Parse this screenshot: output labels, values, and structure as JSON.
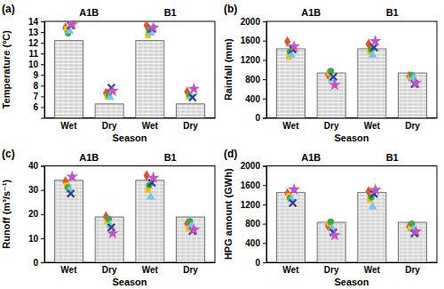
{
  "chart_data": [
    {
      "type": "bar",
      "title": "(a)",
      "x_label": "Season",
      "y_label": "Temperature (ºC)",
      "groups": [
        "A1B",
        "B1"
      ],
      "categories": [
        "Wet",
        "Dry",
        "Wet",
        "Dry"
      ],
      "values": [
        12.2,
        6.3,
        12.2,
        6.3
      ],
      "color": "#d4d4d4",
      "ylim": [
        5,
        14
      ],
      "yticks": [
        6,
        7,
        8,
        9,
        10,
        11,
        12,
        13,
        14
      ],
      "series": [
        {
          "type": "scatter",
          "color": "#e8502a",
          "marker": "diamond",
          "values": [
            13.4,
            7.3,
            13.6,
            7.4
          ]
        },
        {
          "type": "scatter",
          "color": "#f2c200",
          "marker": "square",
          "values": [
            13.3,
            7.0,
            12.7,
            7.0
          ]
        },
        {
          "type": "scatter",
          "color": "#3aa845",
          "marker": "circle",
          "values": [
            12.9,
            7.1,
            13.1,
            7.1
          ]
        },
        {
          "type": "scatter",
          "color": "#74c6e8",
          "marker": "triangle",
          "values": [
            13.1,
            6.9,
            12.9,
            7.0
          ]
        },
        {
          "type": "scatter",
          "color": "#2c3e8c",
          "marker": "x",
          "values": [
            13.6,
            7.8,
            13.3,
            6.9
          ]
        },
        {
          "type": "scatter",
          "color": "#c94fc9",
          "marker": "star",
          "values": [
            13.7,
            7.5,
            13.4,
            7.7
          ]
        }
      ]
    },
    {
      "type": "bar",
      "title": "(b)",
      "x_label": "Season",
      "y_label": "Rainfall (mm)",
      "groups": [
        "A1B",
        "B1"
      ],
      "categories": [
        "Wet",
        "Dry",
        "Wet",
        "Dry"
      ],
      "values": [
        1430,
        930,
        1430,
        930
      ],
      "color": "#d4d4d4",
      "ylim": [
        0,
        2000
      ],
      "yticks": [
        0,
        400,
        800,
        1200,
        1600,
        2000
      ],
      "series": [
        {
          "type": "scatter",
          "color": "#e8502a",
          "marker": "diamond",
          "values": [
            1580,
            900,
            1530,
            860
          ]
        },
        {
          "type": "scatter",
          "color": "#f2c200",
          "marker": "square",
          "values": [
            1260,
            930,
            1370,
            850
          ]
        },
        {
          "type": "scatter",
          "color": "#3aa845",
          "marker": "circle",
          "values": [
            1370,
            970,
            1420,
            880
          ]
        },
        {
          "type": "scatter",
          "color": "#74c6e8",
          "marker": "triangle",
          "values": [
            1300,
            800,
            1300,
            820
          ]
        },
        {
          "type": "scatter",
          "color": "#2c3e8c",
          "marker": "x",
          "values": [
            1420,
            850,
            1460,
            700
          ]
        },
        {
          "type": "scatter",
          "color": "#c94fc9",
          "marker": "star",
          "values": [
            1480,
            680,
            1590,
            720
          ]
        }
      ]
    },
    {
      "type": "bar",
      "title": "(c)",
      "x_label": "Season",
      "y_label": "Runoff (m³/s⁻¹)",
      "groups": [
        "A1B",
        "B1"
      ],
      "categories": [
        "Wet",
        "Dry",
        "Wet",
        "Dry"
      ],
      "values": [
        34,
        18.8,
        34,
        18.8
      ],
      "color": "#d4d4d4",
      "ylim": [
        0,
        40
      ],
      "yticks": [
        0,
        10,
        20,
        30,
        40
      ],
      "series": [
        {
          "type": "scatter",
          "color": "#e8502a",
          "marker": "diamond",
          "values": [
            33.5,
            19,
            36,
            16
          ]
        },
        {
          "type": "scatter",
          "color": "#f2c200",
          "marker": "square",
          "values": [
            32,
            17,
            30,
            14
          ]
        },
        {
          "type": "scatter",
          "color": "#3aa845",
          "marker": "circle",
          "values": [
            31,
            18,
            32,
            17
          ]
        },
        {
          "type": "scatter",
          "color": "#74c6e8",
          "marker": "triangle",
          "values": [
            30,
            15.5,
            27,
            15
          ]
        },
        {
          "type": "scatter",
          "color": "#2c3e8c",
          "marker": "x",
          "values": [
            28.5,
            14.5,
            33,
            13
          ]
        },
        {
          "type": "scatter",
          "color": "#c94fc9",
          "marker": "star",
          "values": [
            35.5,
            12,
            35,
            13.5
          ]
        }
      ]
    },
    {
      "type": "bar",
      "title": "(d)",
      "x_label": "Season",
      "y_label": "HPG amount (GWh)",
      "groups": [
        "A1B",
        "B1"
      ],
      "categories": [
        "Wet",
        "Dry",
        "Wet",
        "Dry"
      ],
      "values": [
        1450,
        830,
        1450,
        830
      ],
      "color": "#d4d4d4",
      "ylim": [
        0,
        2000
      ],
      "yticks": [
        0,
        400,
        800,
        1200,
        1600,
        2000
      ],
      "series": [
        {
          "type": "scatter",
          "color": "#e8502a",
          "marker": "diamond",
          "values": [
            1430,
            760,
            1470,
            740
          ]
        },
        {
          "type": "scatter",
          "color": "#f2c200",
          "marker": "square",
          "values": [
            1380,
            800,
            1300,
            700
          ]
        },
        {
          "type": "scatter",
          "color": "#3aa845",
          "marker": "circle",
          "values": [
            1330,
            840,
            1350,
            800
          ]
        },
        {
          "type": "scatter",
          "color": "#74c6e8",
          "marker": "triangle",
          "values": [
            1300,
            700,
            1150,
            680
          ]
        },
        {
          "type": "scatter",
          "color": "#2c3e8c",
          "marker": "x",
          "values": [
            1230,
            620,
            1420,
            600
          ]
        },
        {
          "type": "scatter",
          "color": "#c94fc9",
          "marker": "star",
          "values": [
            1510,
            560,
            1500,
            640
          ]
        }
      ]
    }
  ]
}
